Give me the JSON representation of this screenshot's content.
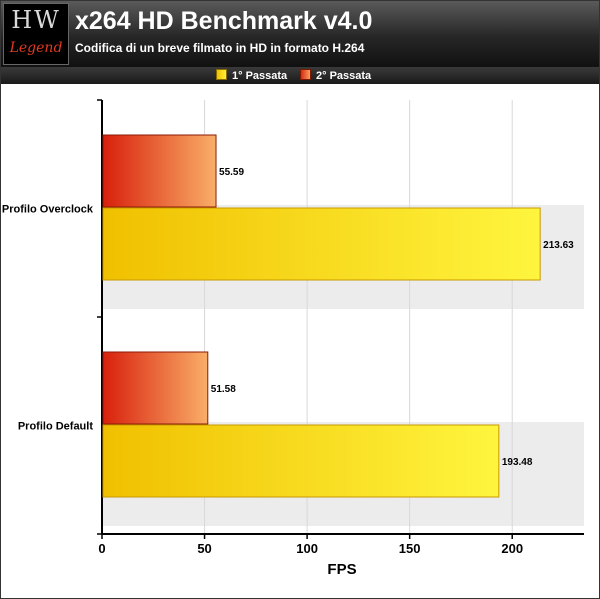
{
  "header": {
    "logo_top": "HW",
    "logo_bottom": "Legend",
    "title": "x264 HD Benchmark v4.0",
    "subtitle": "Codifica di un breve filmato in HD in formato H.264"
  },
  "colors": {
    "series_1": "#f5d21e",
    "series_2": "#e8582a",
    "band": "#ececec"
  },
  "chart_data": {
    "type": "bar",
    "orientation": "horizontal",
    "categories": [
      "Profilo Overclock",
      "Profilo Default"
    ],
    "series": [
      {
        "name": "1° Passata",
        "values": [
          213.63,
          193.48
        ],
        "value_labels": [
          "213.63",
          "193.48"
        ]
      },
      {
        "name": "2° Passata",
        "values": [
          55.59,
          51.58
        ],
        "value_labels": [
          "55.59",
          "51.58"
        ]
      }
    ],
    "xlabel": "FPS",
    "xlim": [
      0,
      235
    ],
    "xticks": [
      0,
      50,
      100,
      150,
      200
    ],
    "legend": "top",
    "grid": true
  }
}
